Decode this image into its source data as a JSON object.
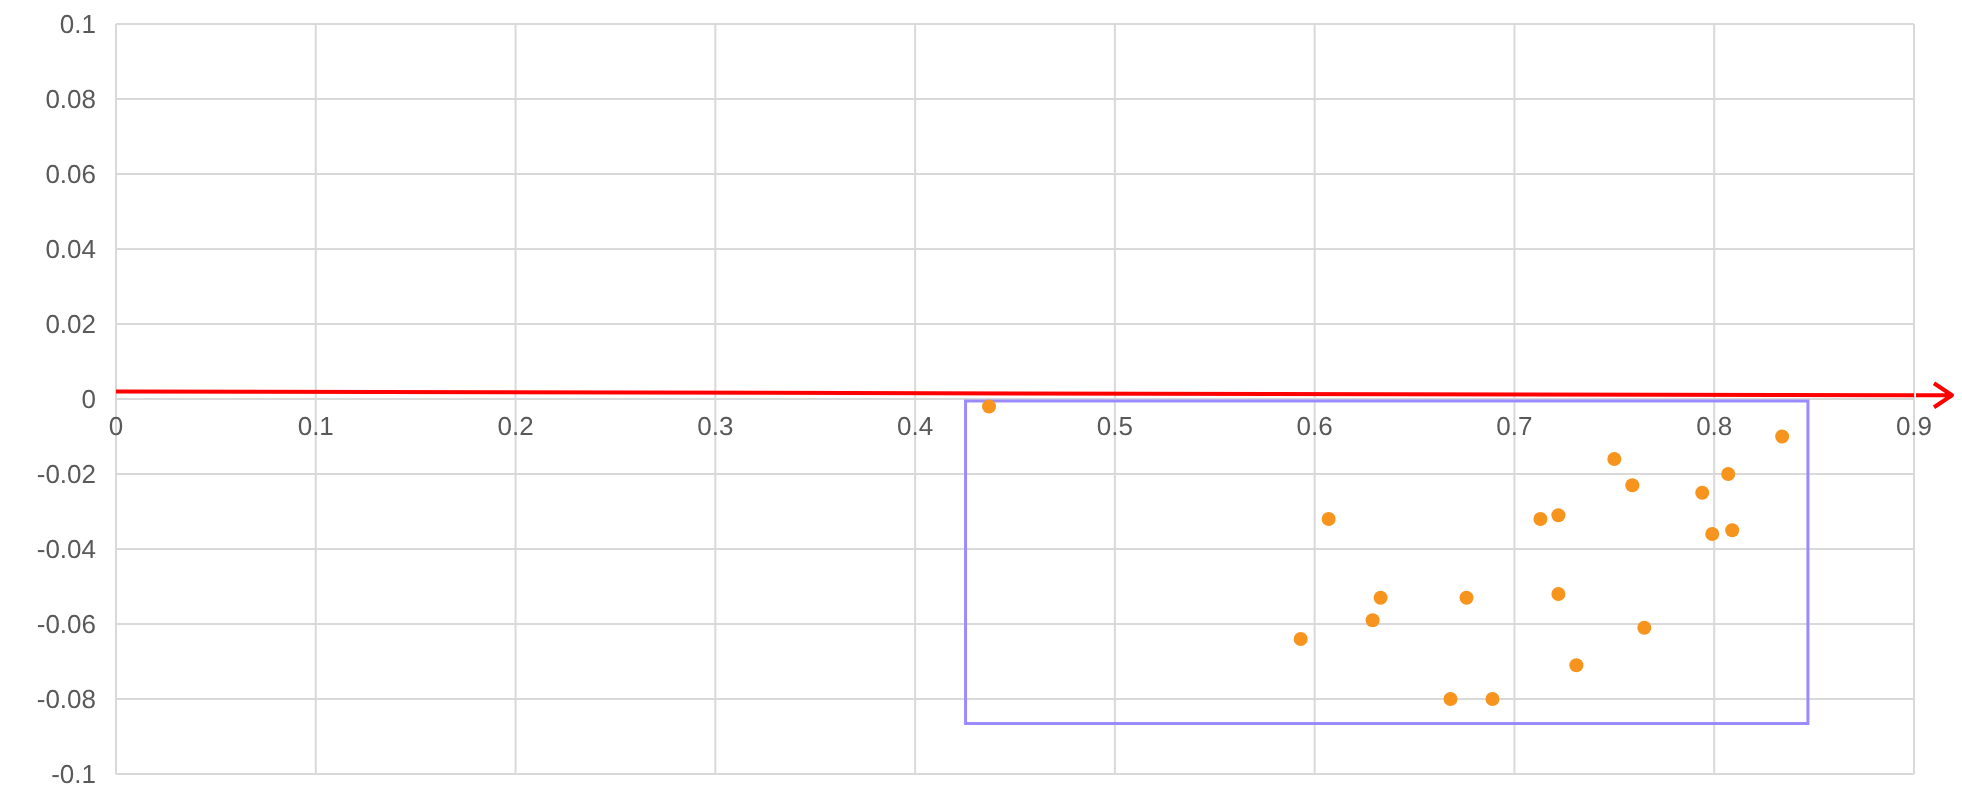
{
  "chart_data": {
    "type": "scatter",
    "xlim": [
      0,
      0.9
    ],
    "ylim": [
      -0.1,
      0.1
    ],
    "xticks": [
      0,
      0.1,
      0.2,
      0.3,
      0.4,
      0.5,
      0.6,
      0.7,
      0.8,
      0.9
    ],
    "yticks": [
      -0.1,
      -0.08,
      -0.06,
      -0.04,
      -0.02,
      0,
      0.02,
      0.04,
      0.06,
      0.08,
      0.1
    ],
    "grid": true,
    "marker": "circle",
    "series": [
      {
        "type": "line",
        "marker": "none",
        "color": "#ff0000",
        "x": [
          0,
          0.9
        ],
        "values": [
          0.002,
          0.001
        ]
      },
      {
        "color": "#f7941d",
        "x": [
          0.437,
          0.607,
          0.633,
          0.629,
          0.593,
          0.676,
          0.713,
          0.722,
          0.75,
          0.759,
          0.794,
          0.807,
          0.799,
          0.809,
          0.834,
          0.722,
          0.765,
          0.731,
          0.668,
          0.689
        ],
        "values": [
          -0.002,
          -0.032,
          -0.053,
          -0.059,
          -0.064,
          -0.053,
          -0.032,
          -0.031,
          -0.016,
          -0.023,
          -0.025,
          -0.02,
          -0.036,
          -0.035,
          -0.01,
          -0.052,
          -0.061,
          -0.071,
          -0.08,
          -0.08
        ]
      }
    ]
  }
}
